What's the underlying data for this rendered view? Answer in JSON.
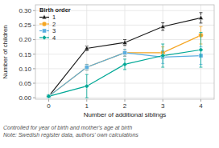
{
  "chart_data": {
    "type": "line",
    "xlabel": "Number of additional siblings",
    "ylabel": "Number of children",
    "x": [
      0,
      1,
      2,
      3,
      4
    ],
    "series": [
      {
        "name": "1",
        "color": "#1a1a1a",
        "marker": "triangle",
        "values": [
          0.005,
          0.17,
          0.19,
          0.245,
          0.275
        ],
        "errors": [
          0.004,
          0.008,
          0.01,
          0.013,
          0.018
        ]
      },
      {
        "name": "2",
        "color": "#F5A623",
        "marker": "circle",
        "values": [
          0.005,
          0.105,
          0.155,
          0.155,
          0.215
        ],
        "errors": [
          0.004,
          0.01,
          0.012,
          0.02,
          0.03
        ]
      },
      {
        "name": "3",
        "color": "#5BAEE0",
        "marker": "square",
        "values": [
          0.005,
          0.105,
          0.155,
          0.14,
          0.145
        ],
        "errors": [
          0.004,
          0.01,
          0.012,
          0.022,
          0.03
        ]
      },
      {
        "name": "4",
        "color": "#00A896",
        "marker": "diamond",
        "values": [
          0.005,
          0.04,
          0.115,
          0.145,
          0.165
        ],
        "errors": [
          0.004,
          0.04,
          0.018,
          0.04,
          0.06
        ]
      }
    ],
    "xlim": [
      -0.35,
      4.35
    ],
    "ylim": [
      -0.005,
      0.32
    ],
    "xticks": [
      0,
      1,
      2,
      3,
      4
    ],
    "yticks": [
      {
        "value": 0.0,
        "label": "0.00"
      },
      0.05,
      {
        "value": 0.1,
        "label": "0.10"
      },
      0.15,
      {
        "value": 0.2,
        "label": "0.20"
      },
      0.25,
      {
        "value": 0.3,
        "label": "0.30"
      }
    ],
    "legend_title": "Birth order",
    "legend": "upper left",
    "grid": true,
    "annotations": [
      "Controlled for year of birth and mother's age at birth",
      "Note: Swedish register data, authors' own calculations"
    ]
  }
}
